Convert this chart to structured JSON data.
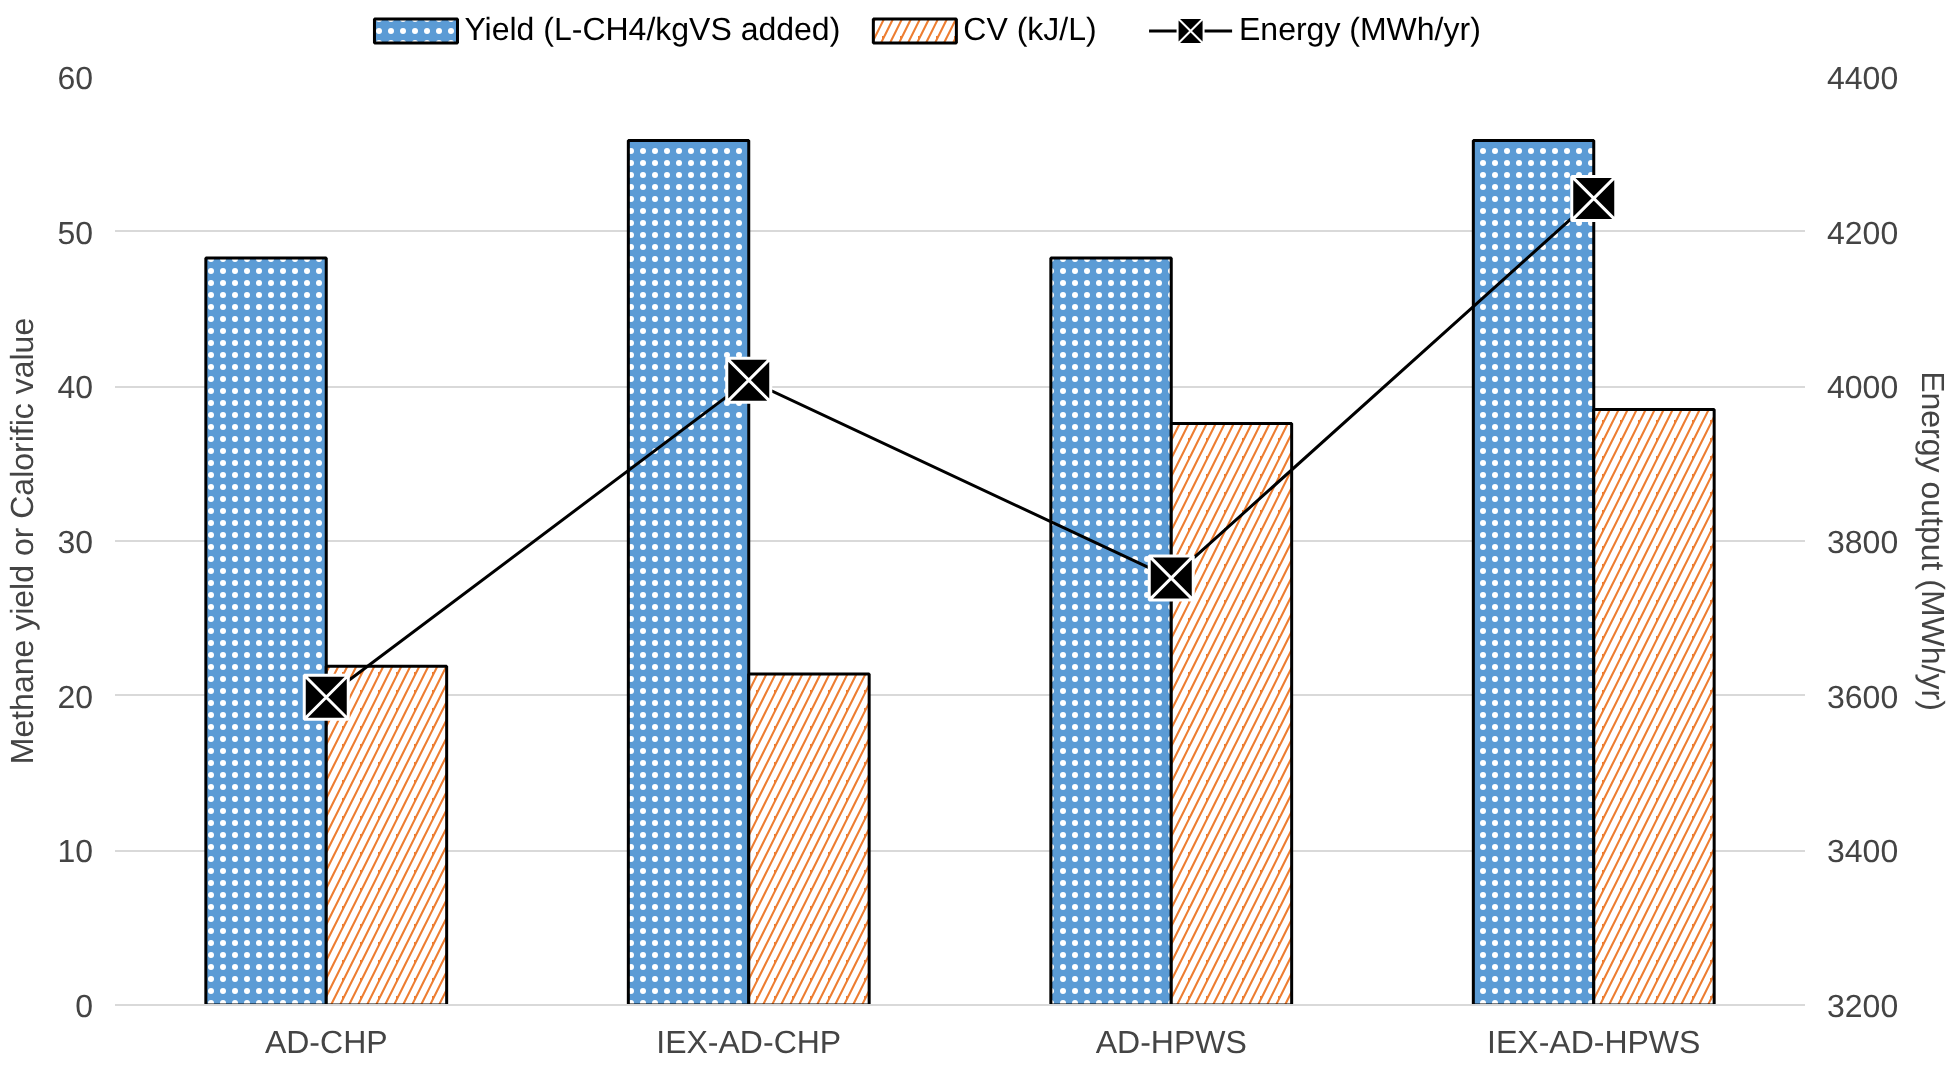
{
  "chart_data": {
    "type": "bar",
    "categories": [
      "AD-CHP",
      "IEX-AD-CHP",
      "AD-HPWS",
      "IEX-AD-HPWS"
    ],
    "ylabel": "Methane yield or Calorific value",
    "y2label": "Energy output (MWh/yr)",
    "ylim": [
      0,
      60
    ],
    "yticks": [
      0,
      10,
      20,
      30,
      40,
      50,
      60
    ],
    "y2lim": [
      3200,
      4400
    ],
    "y2ticks": [
      3200,
      3400,
      3600,
      3800,
      4000,
      4200,
      4400
    ],
    "grid": "y",
    "legend": "top",
    "series": [
      {
        "name": "Yield (L-CH4/kgVS added)",
        "color": "#5b9bd5",
        "values": [
          48.3,
          55.9,
          48.3,
          55.9
        ]
      },
      {
        "name": "CV (kJ/L)",
        "color": "#ed7d31",
        "values": [
          21.9,
          21.4,
          37.6,
          38.5
        ]
      },
      {
        "name": "Energy (MWh/yr)",
        "type": "line",
        "axis": "y2",
        "color": "#000000",
        "marker": "square",
        "values": [
          3598,
          4008,
          3752,
          4243
        ]
      }
    ]
  }
}
